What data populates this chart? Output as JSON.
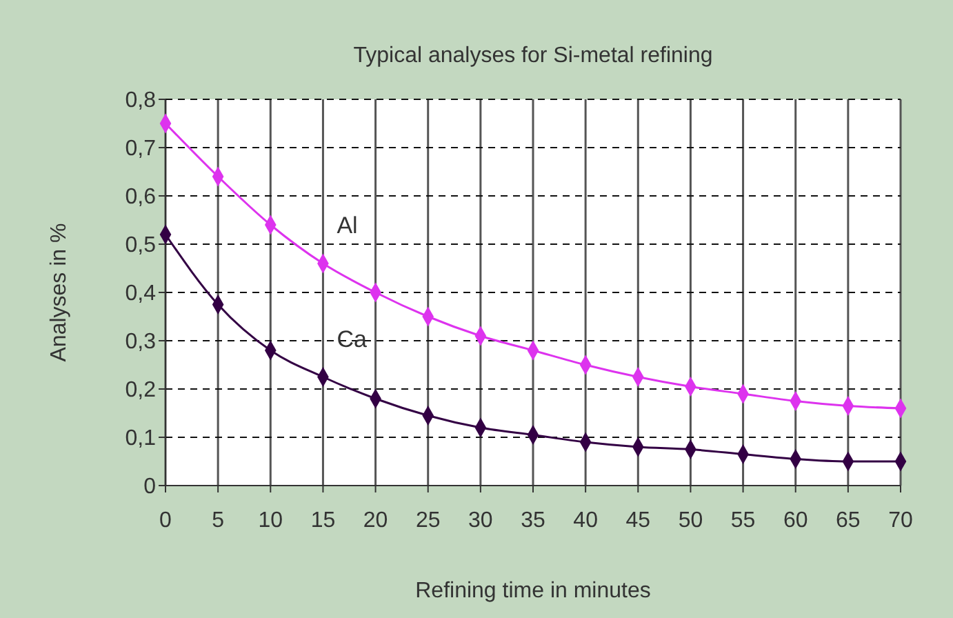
{
  "chart_data": {
    "type": "line",
    "title": "Typical analyses for Si-metal refining",
    "xlabel": "Refining time in minutes",
    "ylabel": "Analyses in %",
    "x": [
      0,
      5,
      10,
      15,
      20,
      25,
      30,
      35,
      40,
      45,
      50,
      55,
      60,
      65,
      70
    ],
    "series": [
      {
        "name": "Al",
        "color": "#dd33ee",
        "values": [
          0.75,
          0.64,
          0.54,
          0.46,
          0.4,
          0.35,
          0.31,
          0.28,
          0.25,
          0.225,
          0.205,
          0.19,
          0.175,
          0.165,
          0.16
        ]
      },
      {
        "name": "Ca",
        "color": "#330044",
        "values": [
          0.52,
          0.375,
          0.28,
          0.225,
          0.18,
          0.145,
          0.12,
          0.105,
          0.09,
          0.08,
          0.075,
          0.065,
          0.055,
          0.05,
          0.05
        ]
      }
    ],
    "xlim": [
      0,
      70
    ],
    "xticks": [
      0,
      5,
      10,
      15,
      20,
      25,
      30,
      35,
      40,
      45,
      50,
      55,
      60,
      65,
      70
    ],
    "ylim": [
      0,
      0.8
    ],
    "yticks": [
      0,
      {
        "value": 0.1,
        "label": "0,1"
      },
      {
        "value": 0.2,
        "label": "0,2"
      },
      {
        "value": 0.3,
        "label": "0,3"
      },
      {
        "value": 0.4,
        "label": "0,4"
      },
      {
        "value": 0.5,
        "label": "0,5"
      },
      {
        "value": 0.6,
        "label": "0,6"
      },
      {
        "value": 0.7,
        "label": "0,7"
      },
      {
        "value": 0.8,
        "label": "0,8"
      }
    ],
    "grid": true,
    "marker": "diamond",
    "line_style": "solid"
  }
}
